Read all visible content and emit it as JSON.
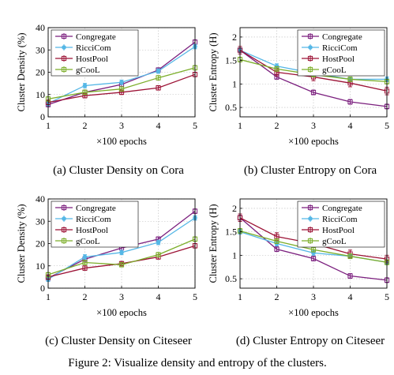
{
  "figure_caption": "Figure 2: Visualize density and entropy of the clusters.",
  "colors": {
    "Congregate": "#7b1f7e",
    "RicciCom": "#55b7e6",
    "HostPool": "#9c1235",
    "gCooL": "#7cae2a"
  },
  "chart_data": [
    {
      "type": "line",
      "caption": "(a) Cluster Density on Cora",
      "xlabel": "×100 epochs",
      "ylabel": "Cluster Density (%)",
      "x": [
        1,
        2,
        3,
        4,
        5
      ],
      "xlim": [
        1,
        5
      ],
      "ylim": [
        0,
        40
      ],
      "yticks": [
        0,
        10,
        20,
        30,
        40
      ],
      "grid": true,
      "legend": "top-left",
      "series": [
        {
          "name": "Congregate",
          "values": [
            5.5,
            11,
            14.5,
            21,
            33.5
          ],
          "err": [
            1.0,
            1.0,
            1.0,
            1.0,
            1.0
          ]
        },
        {
          "name": "RicciCom",
          "values": [
            6,
            14,
            15.5,
            20.5,
            31.5
          ],
          "err": [
            1.0,
            1.0,
            1.0,
            1.0,
            1.0
          ]
        },
        {
          "name": "HostPool",
          "values": [
            6.5,
            9.5,
            11,
            13,
            19
          ],
          "err": [
            1.0,
            1.0,
            1.0,
            1.0,
            1.0
          ]
        },
        {
          "name": "gCooL",
          "values": [
            8,
            11,
            12.5,
            17.5,
            22
          ],
          "err": [
            1.0,
            1.0,
            1.0,
            1.0,
            1.0
          ]
        }
      ]
    },
    {
      "type": "line",
      "caption": "(b) Cluster Entropy on Cora",
      "xlabel": "×100 epochs",
      "ylabel": "Cluster Entropy (H)",
      "x": [
        1,
        2,
        3,
        4,
        5
      ],
      "xlim": [
        1,
        5
      ],
      "ylim": [
        0.3,
        2.2
      ],
      "yticks": [
        0.5,
        1,
        1.5,
        2
      ],
      "grid": true,
      "legend": "top-right",
      "series": [
        {
          "name": "Congregate",
          "values": [
            1.72,
            1.15,
            0.82,
            0.62,
            0.52
          ],
          "err": [
            0.05,
            0.05,
            0.05,
            0.05,
            0.05
          ]
        },
        {
          "name": "RicciCom",
          "values": [
            1.72,
            1.38,
            1.23,
            1.1,
            1.1
          ],
          "err": [
            0.05,
            0.05,
            0.05,
            0.05,
            0.05
          ]
        },
        {
          "name": "HostPool",
          "values": [
            1.72,
            1.25,
            1.15,
            1.02,
            0.85
          ],
          "err": [
            0.08,
            0.08,
            0.08,
            0.08,
            0.08
          ]
        },
        {
          "name": "gCooL",
          "values": [
            1.52,
            1.32,
            1.2,
            1.1,
            1.05
          ],
          "err": [
            0.05,
            0.05,
            0.05,
            0.05,
            0.05
          ]
        }
      ]
    },
    {
      "type": "line",
      "caption": "(c) Cluster Density on Citeseer",
      "xlabel": "×100 epochs",
      "ylabel": "Cluster Density (%)",
      "x": [
        1,
        2,
        3,
        4,
        5
      ],
      "xlim": [
        1,
        5
      ],
      "ylim": [
        0,
        40
      ],
      "yticks": [
        0,
        10,
        20,
        30,
        40
      ],
      "grid": true,
      "legend": "top-left",
      "series": [
        {
          "name": "Congregate",
          "values": [
            4.5,
            13,
            18,
            22,
            34.5
          ],
          "err": [
            1.0,
            1.0,
            1.0,
            1.0,
            1.0
          ]
        },
        {
          "name": "RicciCom",
          "values": [
            4,
            14,
            16,
            20.5,
            31.5
          ],
          "err": [
            1.0,
            1.0,
            1.0,
            1.0,
            1.0
          ]
        },
        {
          "name": "HostPool",
          "values": [
            5,
            9,
            11,
            14,
            19
          ],
          "err": [
            1.0,
            1.0,
            1.0,
            1.0,
            1.0
          ]
        },
        {
          "name": "gCooL",
          "values": [
            6,
            11.5,
            10.5,
            15,
            22
          ],
          "err": [
            1.0,
            1.0,
            1.0,
            1.0,
            1.0
          ]
        }
      ]
    },
    {
      "type": "line",
      "caption": "(d) Cluster Entropy on Citeseer",
      "xlabel": "×100 epochs",
      "ylabel": "Cluster Entropy (H)",
      "x": [
        1,
        2,
        3,
        4,
        5
      ],
      "xlim": [
        1,
        5
      ],
      "ylim": [
        0.3,
        2.2
      ],
      "yticks": [
        0.5,
        1,
        1.5,
        2
      ],
      "grid": true,
      "legend": "top-right",
      "series": [
        {
          "name": "Congregate",
          "values": [
            1.8,
            1.13,
            0.93,
            0.56,
            0.47
          ],
          "err": [
            0.05,
            0.05,
            0.05,
            0.05,
            0.05
          ]
        },
        {
          "name": "RicciCom",
          "values": [
            1.5,
            1.25,
            1.05,
            0.98,
            0.85
          ],
          "err": [
            0.05,
            0.05,
            0.05,
            0.05,
            0.05
          ]
        },
        {
          "name": "HostPool",
          "values": [
            1.8,
            1.4,
            1.25,
            1.03,
            0.92
          ],
          "err": [
            0.08,
            0.08,
            0.08,
            0.08,
            0.08
          ]
        },
        {
          "name": "gCooL",
          "values": [
            1.52,
            1.3,
            1.12,
            0.98,
            0.85
          ],
          "err": [
            0.05,
            0.05,
            0.05,
            0.05,
            0.05
          ]
        }
      ]
    }
  ]
}
